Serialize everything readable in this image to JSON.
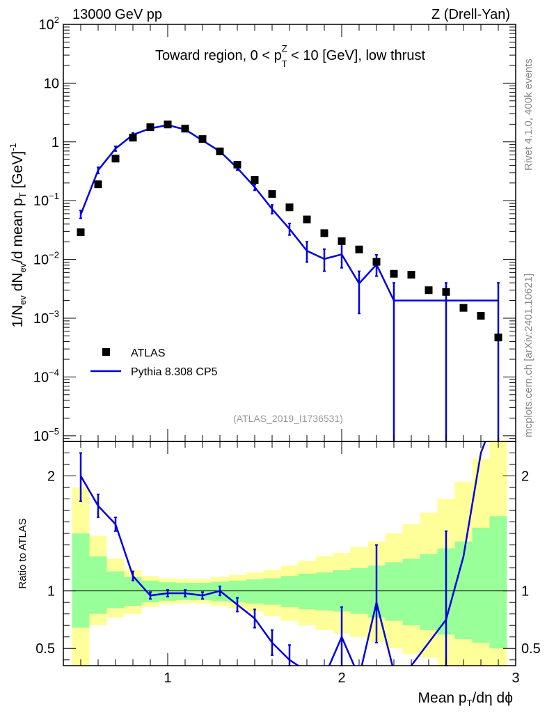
{
  "header": {
    "left": "13000 GeV pp",
    "right": "Z (Drell-Yan)"
  },
  "side_text": {
    "rivet": "Rivet 4.1.0,  400k events",
    "source": "mcplots.cern.ch [arXiv:2401.10621]"
  },
  "colors": {
    "data": "#000000",
    "mc": "#0000e0",
    "band_inner": "#99ff99",
    "band_outer": "#ffff99"
  },
  "chart_data": [
    {
      "type": "scatter",
      "title_parts": {
        "prefix": "Toward region, 0 < p",
        "sup": "Z",
        "sub": "T",
        "suffix": " < 10 [GeV], low thrust"
      },
      "ylabel_parts": [
        "1/N",
        "ev",
        " dN",
        "ev",
        "/d mean p",
        "T",
        " [GeV]",
        "-1"
      ],
      "yscale": "log",
      "ylim": [
        8e-06,
        100
      ],
      "xlim": [
        0.4,
        3.0
      ],
      "y_tick_labels": [
        {
          "exp": -5,
          "text": "10",
          "sup": "−5"
        },
        {
          "exp": -4,
          "text": "10",
          "sup": "−4"
        },
        {
          "exp": -3,
          "text": "10",
          "sup": "−3"
        },
        {
          "exp": -2,
          "text": "10",
          "sup": "−2"
        },
        {
          "exp": -1,
          "text": "10",
          "sup": "−1"
        },
        {
          "exp": 0,
          "text": "1",
          "sup": ""
        },
        {
          "exp": 1,
          "text": "10",
          "sup": ""
        },
        {
          "exp": 2,
          "text": "10",
          "sup": "2"
        }
      ],
      "watermark": "(ATLAS_2019_I1736531)",
      "legend": [
        {
          "name": "ATLAS",
          "marker": "square"
        },
        {
          "name": "Pythia 8.308 CP5",
          "marker": "line"
        }
      ],
      "series": [
        {
          "name": "ATLAS",
          "x": [
            0.5,
            0.6,
            0.7,
            0.8,
            0.9,
            1.0,
            1.1,
            1.2,
            1.3,
            1.4,
            1.5,
            1.6,
            1.7,
            1.8,
            1.9,
            2.0,
            2.1,
            2.2,
            2.3,
            2.4,
            2.5,
            2.6,
            2.7,
            2.8,
            2.9
          ],
          "y": [
            0.029,
            0.19,
            0.52,
            1.18,
            1.78,
            1.98,
            1.68,
            1.12,
            0.69,
            0.41,
            0.225,
            0.13,
            0.077,
            0.048,
            0.028,
            0.0205,
            0.0148,
            0.0091,
            0.0057,
            0.0055,
            0.003,
            0.0028,
            0.0015,
            0.0011,
            0.00047
          ]
        },
        {
          "name": "Pythia 8.308 CP5",
          "x": [
            0.5,
            0.6,
            0.7,
            0.8,
            0.9,
            1.0,
            1.1,
            1.2,
            1.3,
            1.4,
            1.5,
            1.6,
            1.7,
            1.8,
            1.9,
            2.0,
            2.1,
            2.2,
            2.3,
            2.4,
            2.5,
            2.6,
            2.7,
            2.8,
            2.9
          ],
          "y": [
            0.058,
            0.33,
            0.77,
            1.32,
            1.7,
            1.93,
            1.63,
            1.06,
            0.69,
            0.36,
            0.17,
            0.072,
            0.033,
            0.014,
            0.0102,
            0.0122,
            0.0039,
            0.0082,
            0.002,
            0.002,
            0.002,
            0.002,
            0.002,
            0.002,
            0.002
          ],
          "err_low": [
            0.05,
            0.29,
            0.7,
            1.22,
            1.6,
            1.85,
            1.56,
            1.0,
            0.65,
            0.33,
            0.15,
            0.06,
            0.026,
            0.009,
            0.0063,
            0.0072,
            0.0012,
            0.0052,
            1e-07,
            0.002,
            0.002,
            1e-07,
            0.002,
            0.002,
            1e-07
          ],
          "err_high": [
            0.068,
            0.37,
            0.84,
            1.42,
            1.8,
            2.01,
            1.7,
            1.12,
            0.73,
            0.39,
            0.19,
            0.085,
            0.041,
            0.02,
            0.015,
            0.018,
            0.0063,
            0.012,
            0.004,
            0.002,
            0.002,
            0.004,
            0.002,
            0.002,
            0.004
          ]
        }
      ]
    },
    {
      "type": "line",
      "ylabel": "Ratio to ATLAS",
      "xlabel_parts": [
        "Mean p",
        "T",
        "/dη dϕ"
      ],
      "ylim": [
        0.35,
        2.3
      ],
      "xlim": [
        0.4,
        3.0
      ],
      "y_ticks": [
        0.5,
        1,
        2
      ],
      "y_tick_labels": [
        "0.5",
        "1",
        "2"
      ],
      "x_ticks": [
        1,
        2,
        3
      ],
      "x_tick_labels": [
        "1",
        "2",
        "3"
      ],
      "band_edges": [
        0.45,
        0.55,
        0.65,
        0.75,
        0.85,
        0.95,
        1.05,
        1.15,
        1.25,
        1.35,
        1.45,
        1.55,
        1.65,
        1.75,
        1.85,
        1.95,
        2.05,
        2.15,
        2.25,
        2.35,
        2.45,
        2.55,
        2.65,
        2.75,
        2.85,
        2.95
      ],
      "band_inner_low": [
        0.68,
        0.8,
        0.85,
        0.87,
        0.9,
        0.915,
        0.92,
        0.92,
        0.91,
        0.9,
        0.89,
        0.88,
        0.86,
        0.84,
        0.83,
        0.82,
        0.8,
        0.77,
        0.74,
        0.7,
        0.66,
        0.62,
        0.58,
        0.55,
        0.5,
        0.3
      ],
      "band_inner_high": [
        1.5,
        1.3,
        1.17,
        1.12,
        1.09,
        1.075,
        1.07,
        1.07,
        1.08,
        1.09,
        1.1,
        1.11,
        1.13,
        1.15,
        1.16,
        1.18,
        1.2,
        1.22,
        1.25,
        1.28,
        1.32,
        1.37,
        1.43,
        1.55,
        1.65,
        1.87
      ],
      "band_outer_low": [
        0.35,
        0.7,
        0.77,
        0.8,
        0.86,
        0.885,
        0.895,
        0.89,
        0.87,
        0.85,
        0.82,
        0.78,
        0.74,
        0.7,
        0.66,
        0.63,
        0.6,
        0.56,
        0.5,
        0.45,
        0.42,
        0.35,
        0.35,
        0.35,
        0.35,
        0.35
      ],
      "band_outer_high": [
        1.9,
        1.48,
        1.28,
        1.18,
        1.13,
        1.11,
        1.1,
        1.1,
        1.12,
        1.14,
        1.16,
        1.18,
        1.22,
        1.26,
        1.3,
        1.33,
        1.38,
        1.43,
        1.5,
        1.58,
        1.68,
        1.8,
        1.95,
        2.15,
        2.3,
        2.3
      ],
      "series": [
        {
          "name": "Pythia 8.308 CP5 / ATLAS",
          "x": [
            0.5,
            0.6,
            0.7,
            0.8,
            0.9,
            1.0,
            1.1,
            1.2,
            1.3,
            1.4,
            1.5,
            1.6,
            1.7,
            1.8,
            1.9,
            2.0,
            2.1,
            2.2,
            2.3,
            2.4,
            2.5,
            2.6,
            2.7,
            2.8,
            2.9
          ],
          "y": [
            2.0,
            1.74,
            1.58,
            1.13,
            0.96,
            0.98,
            0.98,
            0.96,
            1.0,
            0.88,
            0.76,
            0.55,
            0.4,
            0.3,
            0.25,
            0.6,
            0.25,
            0.9,
            0.3,
            0.35,
            0.55,
            0.75,
            1.3,
            2.2,
            2.6
          ],
          "err_low": [
            1.78,
            1.64,
            1.52,
            1.09,
            0.93,
            0.95,
            0.95,
            0.93,
            0.96,
            0.82,
            0.68,
            0.44,
            0.29,
            0.2,
            0.15,
            0.35,
            0.1,
            0.55,
            0.1,
            0.35,
            0.55,
            0.1,
            1.3,
            2.2,
            2.6
          ],
          "err_high": [
            2.2,
            1.84,
            1.64,
            1.17,
            0.99,
            1.01,
            1.01,
            0.99,
            1.04,
            0.94,
            0.84,
            0.66,
            0.53,
            0.4,
            0.35,
            0.86,
            0.4,
            1.4,
            0.5,
            0.35,
            0.55,
            1.52,
            1.3,
            2.2,
            2.6
          ],
          "show_err": [
            true,
            true,
            true,
            true,
            true,
            true,
            true,
            true,
            true,
            true,
            true,
            true,
            true,
            false,
            false,
            true,
            false,
            true,
            false,
            false,
            false,
            true,
            false,
            false,
            false
          ]
        }
      ]
    }
  ]
}
